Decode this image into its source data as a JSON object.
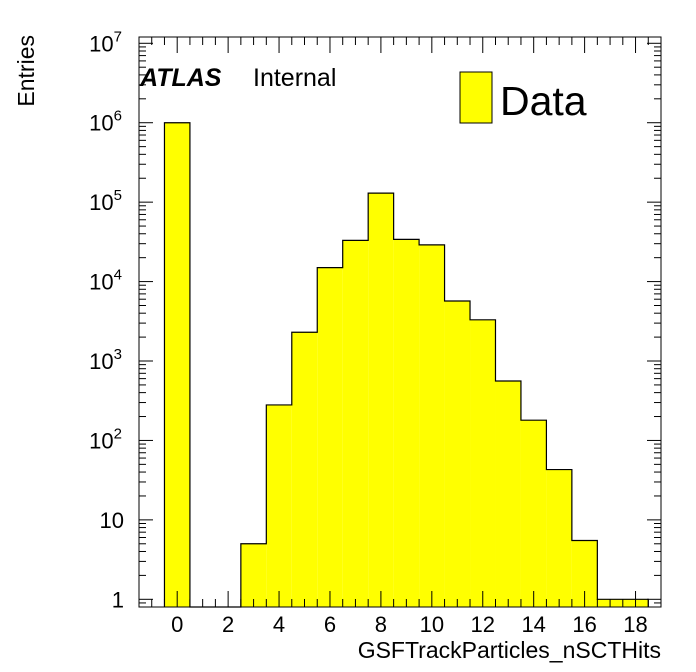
{
  "chart_data": {
    "type": "bar",
    "title": "",
    "xlabel": "GSFTrackParticles_nSCTHits",
    "ylabel": "Entries",
    "yscale": "log",
    "xlim": [
      -1.5,
      19
    ],
    "ylim": [
      0.8,
      12000000
    ],
    "x_ticks": [
      0,
      2,
      4,
      6,
      8,
      10,
      12,
      14,
      16,
      18
    ],
    "y_ticks": [
      {
        "value": 1,
        "base": "1",
        "exp": ""
      },
      {
        "value": 10,
        "base": "10",
        "exp": ""
      },
      {
        "value": 100,
        "base": "10",
        "exp": "2"
      },
      {
        "value": 1000,
        "base": "10",
        "exp": "3"
      },
      {
        "value": 10000,
        "base": "10",
        "exp": "4"
      },
      {
        "value": 100000,
        "base": "10",
        "exp": "5"
      },
      {
        "value": 1000000,
        "base": "10",
        "exp": "6"
      },
      {
        "value": 10000000,
        "base": "10",
        "exp": "7"
      }
    ],
    "bins": [
      {
        "x": 0,
        "value": 1000000
      },
      {
        "x": 1,
        "value": 0
      },
      {
        "x": 2,
        "value": 0
      },
      {
        "x": 3,
        "value": 5
      },
      {
        "x": 4,
        "value": 280
      },
      {
        "x": 5,
        "value": 2300
      },
      {
        "x": 6,
        "value": 15000
      },
      {
        "x": 7,
        "value": 33000
      },
      {
        "x": 8,
        "value": 130000
      },
      {
        "x": 9,
        "value": 34000
      },
      {
        "x": 10,
        "value": 29000
      },
      {
        "x": 11,
        "value": 5700
      },
      {
        "x": 12,
        "value": 3300
      },
      {
        "x": 13,
        "value": 560
      },
      {
        "x": 14,
        "value": 180
      },
      {
        "x": 15,
        "value": 43
      },
      {
        "x": 16,
        "value": 5.5
      },
      {
        "x": 17,
        "value": 1
      },
      {
        "x": 18,
        "value": 1
      }
    ],
    "series": [
      {
        "name": "Data",
        "color": "#ffff00"
      }
    ],
    "fill_color": "#ffff00",
    "edge_color": "#000000",
    "legend_position": "top-right"
  },
  "labels": {
    "atlas": "ATLAS",
    "internal": "Internal",
    "legend": "Data"
  }
}
